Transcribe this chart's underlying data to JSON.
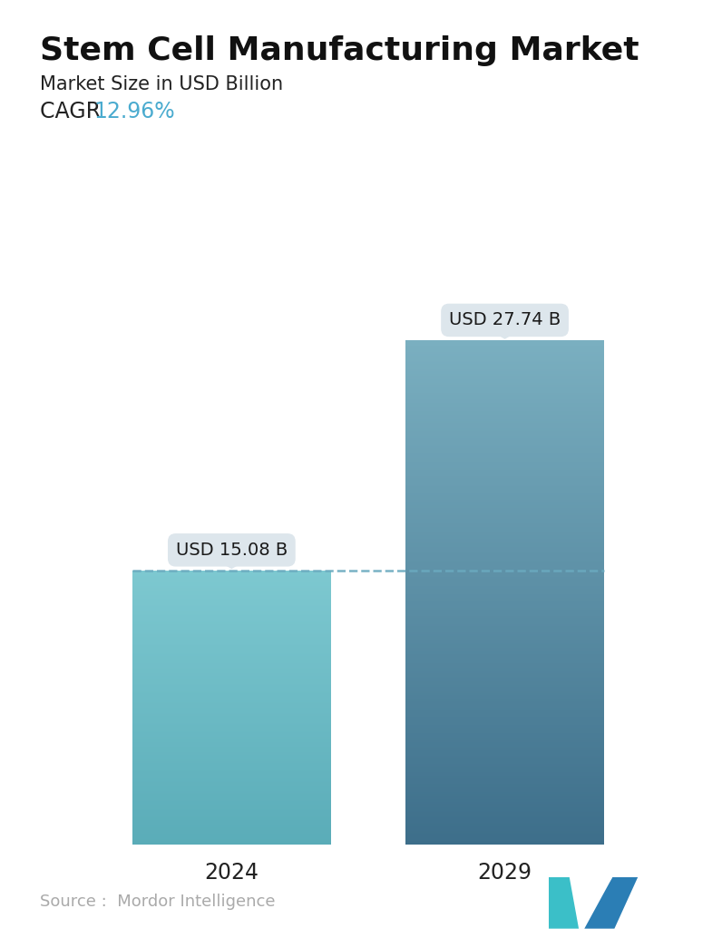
{
  "title": "Stem Cell Manufacturing Market",
  "subtitle": "Market Size in USD Billion",
  "cagr_label": "CAGR  ",
  "cagr_value": "12.96%",
  "cagr_color": "#4AABCF",
  "categories": [
    "2024",
    "2029"
  ],
  "values": [
    15.08,
    27.74
  ],
  "labels": [
    "USD 15.08 B",
    "USD 27.74 B"
  ],
  "bar_colors_top_left": "#7DC8D0",
  "bar_colors_bottom_left": "#5AACB8",
  "bar_colors_top_right": "#7AAFC0",
  "bar_colors_bottom_right": "#3D6E8A",
  "dashed_line_color": "#6BAABF",
  "dashed_line_y": 15.08,
  "source_text": "Source :  Mordor Intelligence",
  "source_color": "#aaaaaa",
  "background_color": "#ffffff",
  "title_fontsize": 26,
  "subtitle_fontsize": 15,
  "cagr_fontsize": 17,
  "label_fontsize": 14,
  "tick_fontsize": 17,
  "source_fontsize": 13,
  "ylim": [
    0,
    31
  ],
  "callout_bg": "#DDE6EC",
  "callout_text_color": "#1a1a1a",
  "bar_positions": [
    0.28,
    0.72
  ],
  "bar_width": 0.32,
  "logo_teal": "#3BBFC8",
  "logo_blue": "#2B7EB5"
}
